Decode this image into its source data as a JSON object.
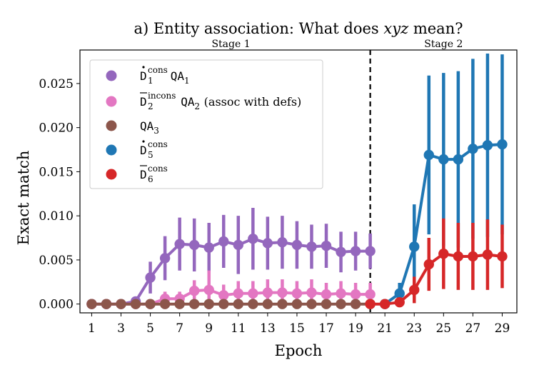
{
  "chart_data": {
    "type": "line",
    "title_prefix": "a) Entity association: What does ",
    "title_var": "xyz",
    "title_suffix": " mean?",
    "xlabel": "Epoch",
    "ylabel": "Exact match",
    "xlim": [
      0.2,
      30.0
    ],
    "ylim": [
      -0.001,
      0.0288
    ],
    "xticks": [
      1,
      3,
      5,
      7,
      9,
      11,
      13,
      15,
      17,
      19,
      21,
      23,
      25,
      27,
      29
    ],
    "yticks": [
      0.0,
      0.005,
      0.01,
      0.015,
      0.02,
      0.025
    ],
    "ytick_labels": [
      "0.000",
      "0.005",
      "0.010",
      "0.015",
      "0.020",
      "0.025"
    ],
    "stage_divider_x": 20,
    "stages": [
      {
        "label": "Stage 1",
        "center_x": 10.5
      },
      {
        "label": "Stage 2",
        "center_x": 25.0
      }
    ],
    "legend_location": "upper-left",
    "series": [
      {
        "key": "s1",
        "color": "#9467bd",
        "legend": {
          "base": "D",
          "accent": "dot",
          "sub": "1",
          "sup": "cons",
          "tail": [
            {
              "t": "QA",
              "mono": true
            },
            {
              "t": "1",
              "sub": true
            }
          ]
        },
        "x": [
          1,
          2,
          3,
          4,
          5,
          6,
          7,
          8,
          9,
          10,
          11,
          12,
          13,
          14,
          15,
          16,
          17,
          18,
          19,
          20
        ],
        "y": [
          0,
          0,
          0,
          0.0003,
          0.003,
          0.0052,
          0.0068,
          0.0067,
          0.0064,
          0.0071,
          0.0067,
          0.0074,
          0.0069,
          0.007,
          0.0067,
          0.0065,
          0.0066,
          0.0059,
          0.006,
          0.006
        ],
        "err": [
          0,
          0,
          0,
          0.0003,
          0.0018,
          0.0025,
          0.003,
          0.003,
          0.0028,
          0.003,
          0.0033,
          0.0035,
          0.003,
          0.003,
          0.0027,
          0.0025,
          0.0025,
          0.0023,
          0.0022,
          0.002
        ]
      },
      {
        "key": "s2",
        "color": "#e377c2",
        "legend": {
          "base": "D",
          "accent": "bar",
          "sub": "2",
          "sup": "incons",
          "tail": [
            {
              "t": "QA",
              "mono": true
            },
            {
              "t": "2",
              "sub": true
            },
            {
              "t": " (assoc with defs)"
            }
          ]
        },
        "x": [
          1,
          2,
          3,
          4,
          5,
          6,
          7,
          8,
          9,
          10,
          11,
          12,
          13,
          14,
          15,
          16,
          17,
          18,
          19,
          20
        ],
        "y": [
          0,
          0,
          0,
          0,
          0,
          0.0006,
          0.0006,
          0.0015,
          0.0016,
          0.001,
          0.0012,
          0.0012,
          0.0013,
          0.0013,
          0.0012,
          0.0013,
          0.0011,
          0.0012,
          0.0011,
          0.0011
        ],
        "err": [
          0,
          0,
          0,
          0,
          0.0002,
          0.0008,
          0.0008,
          0.0012,
          0.0022,
          0.0012,
          0.0014,
          0.0014,
          0.0015,
          0.0015,
          0.0014,
          0.0015,
          0.0013,
          0.0014,
          0.0013,
          0.0013
        ]
      },
      {
        "key": "s3",
        "color": "#8c564b",
        "legend": {
          "base": "",
          "tail": [
            {
              "t": "QA",
              "mono": true
            },
            {
              "t": "3",
              "sub": true
            }
          ]
        },
        "x": [
          1,
          2,
          3,
          4,
          5,
          6,
          7,
          8,
          9,
          10,
          11,
          12,
          13,
          14,
          15,
          16,
          17,
          18,
          19,
          20
        ],
        "y": [
          0,
          0,
          0,
          0,
          0,
          0,
          0,
          0,
          0,
          0,
          0,
          0,
          0,
          0,
          0,
          0,
          0,
          0,
          0,
          0
        ],
        "err": [
          0,
          0,
          0,
          0,
          0,
          0,
          0,
          0,
          0,
          0,
          0,
          0,
          0,
          0,
          0,
          0,
          0,
          0,
          0,
          0
        ]
      },
      {
        "key": "s4",
        "color": "#1f77b4",
        "legend": {
          "base": "D",
          "accent": "dot",
          "sub": "5",
          "sup": "cons",
          "tail": []
        },
        "x": [
          21,
          22,
          23,
          24,
          25,
          26,
          27,
          28,
          29
        ],
        "y": [
          0,
          0.0012,
          0.0065,
          0.0169,
          0.0164,
          0.0164,
          0.0176,
          0.018,
          0.0181
        ],
        "err": [
          0,
          0.0012,
          0.0048,
          0.009,
          0.0098,
          0.01,
          0.0102,
          0.0104,
          0.0102
        ]
      },
      {
        "key": "s5",
        "color": "#d62728",
        "legend": {
          "base": "D",
          "accent": "bar",
          "sub": "6",
          "sup": "cons",
          "tail": []
        },
        "x": [
          20,
          21,
          22,
          23,
          24,
          25,
          26,
          27,
          28,
          29
        ],
        "y": [
          0,
          0,
          0.0002,
          0.0016,
          0.0045,
          0.0057,
          0.0054,
          0.0054,
          0.0056,
          0.0054
        ],
        "err": [
          0,
          0,
          0.0005,
          0.0015,
          0.003,
          0.004,
          0.0038,
          0.0038,
          0.004,
          0.0036
        ]
      }
    ]
  }
}
